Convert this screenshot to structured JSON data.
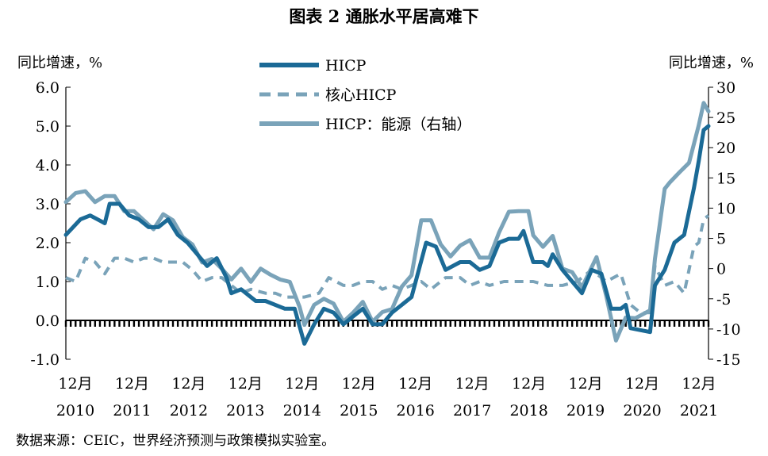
{
  "chart_data": {
    "type": "line",
    "title": "图表 2  通胀水平居高难下",
    "ylabel_left": "同比增速，%",
    "ylabel_right": "同比增速，%",
    "ylim_left": [
      -1.0,
      6.0
    ],
    "yticks_left": [
      "6.0",
      "5.0",
      "4.0",
      "3.0",
      "2.0",
      "1.0",
      "0.0",
      "-1.0"
    ],
    "ylim_right": [
      -15,
      30
    ],
    "yticks_right": [
      "30",
      "25",
      "20",
      "15",
      "10",
      "5",
      "0",
      "-5",
      "-10",
      "-15"
    ],
    "x_ticks": [
      {
        "month": "12月",
        "year": "2010"
      },
      {
        "month": "12月",
        "year": "2011"
      },
      {
        "month": "12月",
        "year": "2012"
      },
      {
        "month": "12月",
        "year": "2013"
      },
      {
        "month": "12月",
        "year": "2014"
      },
      {
        "month": "12月",
        "year": "2015"
      },
      {
        "month": "12月",
        "year": "2016"
      },
      {
        "month": "12月",
        "year": "2017"
      },
      {
        "month": "12月",
        "year": "2018"
      },
      {
        "month": "12月",
        "year": "2019"
      },
      {
        "month": "12月",
        "year": "2020"
      },
      {
        "month": "12月",
        "year": "2021"
      }
    ],
    "x_start": "2010-12",
    "x_end": "2021-12",
    "legend_position": "top-center",
    "grid": false,
    "series": [
      {
        "name": "HICP",
        "axis": "left",
        "color": "#1b6a96",
        "style": "solid",
        "anchors": [
          [
            "2010-12",
            2.2
          ],
          [
            "2011-03",
            2.6
          ],
          [
            "2011-05",
            2.7
          ],
          [
            "2011-08",
            2.5
          ],
          [
            "2011-09",
            3.0
          ],
          [
            "2011-11",
            3.0
          ],
          [
            "2012-01",
            2.7
          ],
          [
            "2012-03",
            2.6
          ],
          [
            "2012-05",
            2.4
          ],
          [
            "2012-07",
            2.4
          ],
          [
            "2012-09",
            2.6
          ],
          [
            "2012-11",
            2.2
          ],
          [
            "2013-01",
            2.0
          ],
          [
            "2013-03",
            1.7
          ],
          [
            "2013-05",
            1.4
          ],
          [
            "2013-07",
            1.6
          ],
          [
            "2013-09",
            1.1
          ],
          [
            "2013-10",
            0.7
          ],
          [
            "2013-12",
            0.8
          ],
          [
            "2014-03",
            0.5
          ],
          [
            "2014-05",
            0.5
          ],
          [
            "2014-07",
            0.4
          ],
          [
            "2014-09",
            0.3
          ],
          [
            "2014-11",
            0.3
          ],
          [
            "2015-01",
            -0.6
          ],
          [
            "2015-03",
            -0.1
          ],
          [
            "2015-05",
            0.3
          ],
          [
            "2015-07",
            0.2
          ],
          [
            "2015-09",
            -0.1
          ],
          [
            "2015-11",
            0.1
          ],
          [
            "2016-01",
            0.3
          ],
          [
            "2016-03",
            -0.1
          ],
          [
            "2016-05",
            -0.1
          ],
          [
            "2016-07",
            0.2
          ],
          [
            "2016-09",
            0.4
          ],
          [
            "2016-11",
            0.6
          ],
          [
            "2017-02",
            2.0
          ],
          [
            "2017-04",
            1.9
          ],
          [
            "2017-06",
            1.3
          ],
          [
            "2017-09",
            1.5
          ],
          [
            "2017-11",
            1.5
          ],
          [
            "2018-01",
            1.3
          ],
          [
            "2018-03",
            1.4
          ],
          [
            "2018-05",
            2.0
          ],
          [
            "2018-07",
            2.1
          ],
          [
            "2018-09",
            2.1
          ],
          [
            "2018-10",
            2.3
          ],
          [
            "2018-12",
            1.5
          ],
          [
            "2019-02",
            1.5
          ],
          [
            "2019-03",
            1.4
          ],
          [
            "2019-04",
            1.7
          ],
          [
            "2019-06",
            1.3
          ],
          [
            "2019-08",
            1.0
          ],
          [
            "2019-10",
            0.7
          ],
          [
            "2019-12",
            1.3
          ],
          [
            "2020-02",
            1.2
          ],
          [
            "2020-04",
            0.3
          ],
          [
            "2020-06",
            0.3
          ],
          [
            "2020-07",
            0.4
          ],
          [
            "2020-08",
            -0.2
          ],
          [
            "2020-12",
            -0.3
          ],
          [
            "2021-01",
            0.9
          ],
          [
            "2021-03",
            1.3
          ],
          [
            "2021-05",
            2.0
          ],
          [
            "2021-07",
            2.2
          ],
          [
            "2021-09",
            3.4
          ],
          [
            "2021-10",
            4.1
          ],
          [
            "2021-11",
            4.9
          ],
          [
            "2021-12",
            5.0
          ]
        ]
      },
      {
        "name": "核心HICP",
        "axis": "left",
        "color": "#7aa3b9",
        "style": "dashed",
        "anchors": [
          [
            "2010-12",
            1.1
          ],
          [
            "2011-02",
            1.0
          ],
          [
            "2011-04",
            1.6
          ],
          [
            "2011-06",
            1.5
          ],
          [
            "2011-08",
            1.2
          ],
          [
            "2011-10",
            1.6
          ],
          [
            "2011-12",
            1.6
          ],
          [
            "2012-02",
            1.5
          ],
          [
            "2012-04",
            1.6
          ],
          [
            "2012-06",
            1.6
          ],
          [
            "2012-08",
            1.5
          ],
          [
            "2012-10",
            1.5
          ],
          [
            "2012-12",
            1.5
          ],
          [
            "2013-02",
            1.3
          ],
          [
            "2013-04",
            1.0
          ],
          [
            "2013-06",
            1.1
          ],
          [
            "2013-08",
            1.1
          ],
          [
            "2013-10",
            0.9
          ],
          [
            "2013-12",
            0.7
          ],
          [
            "2014-02",
            0.8
          ],
          [
            "2014-05",
            0.7
          ],
          [
            "2014-07",
            0.7
          ],
          [
            "2014-09",
            0.6
          ],
          [
            "2014-11",
            0.6
          ],
          [
            "2015-01",
            0.6
          ],
          [
            "2015-04",
            0.7
          ],
          [
            "2015-06",
            1.1
          ],
          [
            "2015-09",
            0.9
          ],
          [
            "2015-11",
            0.9
          ],
          [
            "2016-01",
            1.0
          ],
          [
            "2016-03",
            1.0
          ],
          [
            "2016-05",
            0.8
          ],
          [
            "2016-07",
            0.9
          ],
          [
            "2016-09",
            0.8
          ],
          [
            "2016-11",
            0.9
          ],
          [
            "2017-01",
            1.0
          ],
          [
            "2017-03",
            0.8
          ],
          [
            "2017-06",
            1.1
          ],
          [
            "2017-09",
            1.1
          ],
          [
            "2017-11",
            0.9
          ],
          [
            "2018-01",
            1.0
          ],
          [
            "2018-03",
            0.9
          ],
          [
            "2018-06",
            1.0
          ],
          [
            "2018-09",
            1.0
          ],
          [
            "2018-12",
            1.0
          ],
          [
            "2019-03",
            0.9
          ],
          [
            "2019-06",
            0.9
          ],
          [
            "2019-09",
            1.0
          ],
          [
            "2019-12",
            1.3
          ],
          [
            "2020-03",
            1.0
          ],
          [
            "2020-06",
            1.2
          ],
          [
            "2020-08",
            0.4
          ],
          [
            "2020-10",
            0.2
          ],
          [
            "2020-12",
            0.2
          ],
          [
            "2021-01",
            1.4
          ],
          [
            "2021-03",
            0.9
          ],
          [
            "2021-05",
            1.0
          ],
          [
            "2021-07",
            0.7
          ],
          [
            "2021-09",
            1.9
          ],
          [
            "2021-10",
            2.0
          ],
          [
            "2021-11",
            2.6
          ],
          [
            "2021-12",
            2.7
          ]
        ]
      },
      {
        "name": "HICP：能源（右轴）",
        "axis": "right",
        "color": "#7aa3b9",
        "style": "solid",
        "anchors": [
          [
            "2010-12",
            11.0
          ],
          [
            "2011-02",
            12.5
          ],
          [
            "2011-04",
            12.8
          ],
          [
            "2011-06",
            11.0
          ],
          [
            "2011-08",
            12.0
          ],
          [
            "2011-10",
            12.0
          ],
          [
            "2011-12",
            9.5
          ],
          [
            "2012-02",
            9.5
          ],
          [
            "2012-04",
            8.0
          ],
          [
            "2012-06",
            6.5
          ],
          [
            "2012-08",
            9.0
          ],
          [
            "2012-10",
            8.0
          ],
          [
            "2012-12",
            5.2
          ],
          [
            "2013-02",
            4.0
          ],
          [
            "2013-04",
            1.0
          ],
          [
            "2013-06",
            1.6
          ],
          [
            "2013-08",
            0.0
          ],
          [
            "2013-10",
            -1.8
          ],
          [
            "2013-12",
            0.0
          ],
          [
            "2014-02",
            -2.2
          ],
          [
            "2014-04",
            0.0
          ],
          [
            "2014-06",
            -1.0
          ],
          [
            "2014-08",
            -1.8
          ],
          [
            "2014-10",
            -2.2
          ],
          [
            "2014-12",
            -6.3
          ],
          [
            "2015-01",
            -9.3
          ],
          [
            "2015-03",
            -6.0
          ],
          [
            "2015-05",
            -5.0
          ],
          [
            "2015-07",
            -5.8
          ],
          [
            "2015-09",
            -8.8
          ],
          [
            "2015-11",
            -7.3
          ],
          [
            "2016-01",
            -5.5
          ],
          [
            "2016-03",
            -8.8
          ],
          [
            "2016-05",
            -7.2
          ],
          [
            "2016-07",
            -6.7
          ],
          [
            "2016-09",
            -3.0
          ],
          [
            "2016-11",
            -1.1
          ],
          [
            "2017-01",
            8.0
          ],
          [
            "2017-03",
            8.0
          ],
          [
            "2017-05",
            4.0
          ],
          [
            "2017-07",
            2.0
          ],
          [
            "2017-09",
            3.8
          ],
          [
            "2017-11",
            4.7
          ],
          [
            "2018-01",
            1.8
          ],
          [
            "2018-03",
            1.8
          ],
          [
            "2018-05",
            6.0
          ],
          [
            "2018-07",
            9.4
          ],
          [
            "2018-09",
            9.5
          ],
          [
            "2018-11",
            9.5
          ],
          [
            "2018-12",
            5.5
          ],
          [
            "2019-02",
            3.6
          ],
          [
            "2019-04",
            5.4
          ],
          [
            "2019-06",
            0.0
          ],
          [
            "2019-08",
            -0.6
          ],
          [
            "2019-10",
            -3.1
          ],
          [
            "2019-12",
            0.2
          ],
          [
            "2020-01",
            1.9
          ],
          [
            "2020-03",
            -4.5
          ],
          [
            "2020-05",
            -11.9
          ],
          [
            "2020-07",
            -8.1
          ],
          [
            "2020-09",
            -8.2
          ],
          [
            "2020-12",
            -6.9
          ],
          [
            "2021-01",
            1.6
          ],
          [
            "2021-03",
            13.2
          ],
          [
            "2021-04",
            14.2
          ],
          [
            "2021-06",
            15.9
          ],
          [
            "2021-08",
            17.5
          ],
          [
            "2021-10",
            23.7
          ],
          [
            "2021-11",
            27.4
          ],
          [
            "2021-12",
            26.0
          ]
        ]
      }
    ]
  },
  "source": "数据来源：CEIC，世界经济预测与政策模拟实验室。"
}
